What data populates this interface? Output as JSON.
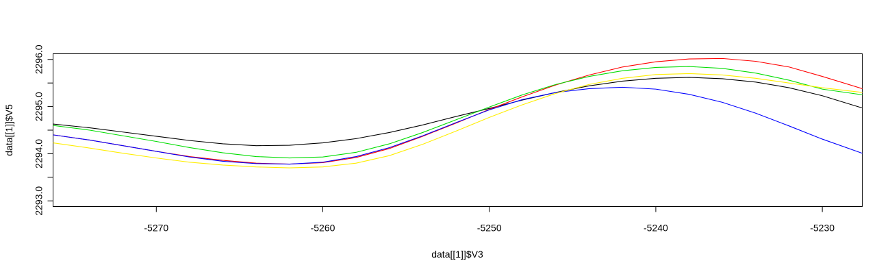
{
  "chart_data": {
    "type": "line",
    "xlabel": "data[[1]]$V3",
    "ylabel": "data[[1]]$V5",
    "xlim": [
      -5276.2,
      -5227.6
    ],
    "ylim": [
      2292.88,
      2296.12
    ],
    "x_ticks": [
      -5270,
      -5260,
      -5250,
      -5240,
      -5230
    ],
    "x_tick_labels": [
      "-5270",
      "-5260",
      "-5250",
      "-5240",
      "-5230"
    ],
    "y_ticks": [
      2293.0,
      2293.5,
      2294.0,
      2294.5,
      2295.0,
      2295.5,
      2296.0
    ],
    "y_tick_labels": [
      "2293.0",
      "",
      "2294.0",
      "",
      "2295.0",
      "",
      "2296.0"
    ],
    "grid": false,
    "x": [
      -5276.2,
      -5274,
      -5272,
      -5270,
      -5268,
      -5266,
      -5264,
      -5262,
      -5260,
      -5258,
      -5256,
      -5254,
      -5252,
      -5250,
      -5248,
      -5246,
      -5244,
      -5242,
      -5240,
      -5238,
      -5236,
      -5234,
      -5232,
      -5230,
      -5227.6
    ],
    "series": [
      {
        "color": "#000000",
        "values": [
          2294.63,
          2294.55,
          2294.46,
          2294.37,
          2294.28,
          2294.21,
          2294.17,
          2294.18,
          2294.23,
          2294.32,
          2294.45,
          2294.61,
          2294.79,
          2294.96,
          2295.14,
          2295.3,
          2295.44,
          2295.54,
          2295.6,
          2295.62,
          2295.59,
          2295.52,
          2295.4,
          2295.23,
          2294.97
        ]
      },
      {
        "color": "#ff0000",
        "values": [
          2294.4,
          2294.29,
          2294.17,
          2294.05,
          2293.94,
          2293.86,
          2293.8,
          2293.78,
          2293.81,
          2293.92,
          2294.11,
          2294.37,
          2294.65,
          2294.94,
          2295.21,
          2295.46,
          2295.67,
          2295.84,
          2295.95,
          2296.01,
          2296.02,
          2295.96,
          2295.84,
          2295.64,
          2295.38
        ]
      },
      {
        "color": "#00dd00",
        "values": [
          2294.6,
          2294.5,
          2294.38,
          2294.26,
          2294.13,
          2294.02,
          2293.94,
          2293.91,
          2293.93,
          2294.03,
          2294.21,
          2294.45,
          2294.72,
          2294.99,
          2295.25,
          2295.47,
          2295.64,
          2295.76,
          2295.83,
          2295.85,
          2295.81,
          2295.71,
          2295.56,
          2295.37,
          2295.25
        ]
      },
      {
        "color": "#0000ff",
        "values": [
          2294.4,
          2294.29,
          2294.17,
          2294.05,
          2293.93,
          2293.84,
          2293.79,
          2293.78,
          2293.82,
          2293.94,
          2294.13,
          2294.38,
          2294.66,
          2294.93,
          2295.15,
          2295.3,
          2295.38,
          2295.41,
          2295.37,
          2295.26,
          2295.09,
          2294.86,
          2294.59,
          2294.31,
          2294.01
        ]
      },
      {
        "color": "#ffee00",
        "values": [
          2294.23,
          2294.12,
          2294.01,
          2293.91,
          2293.82,
          2293.76,
          2293.72,
          2293.7,
          2293.72,
          2293.8,
          2293.96,
          2294.2,
          2294.48,
          2294.77,
          2295.04,
          2295.28,
          2295.47,
          2295.6,
          2295.68,
          2295.7,
          2295.67,
          2295.6,
          2295.5,
          2295.4,
          2295.3
        ]
      }
    ]
  }
}
